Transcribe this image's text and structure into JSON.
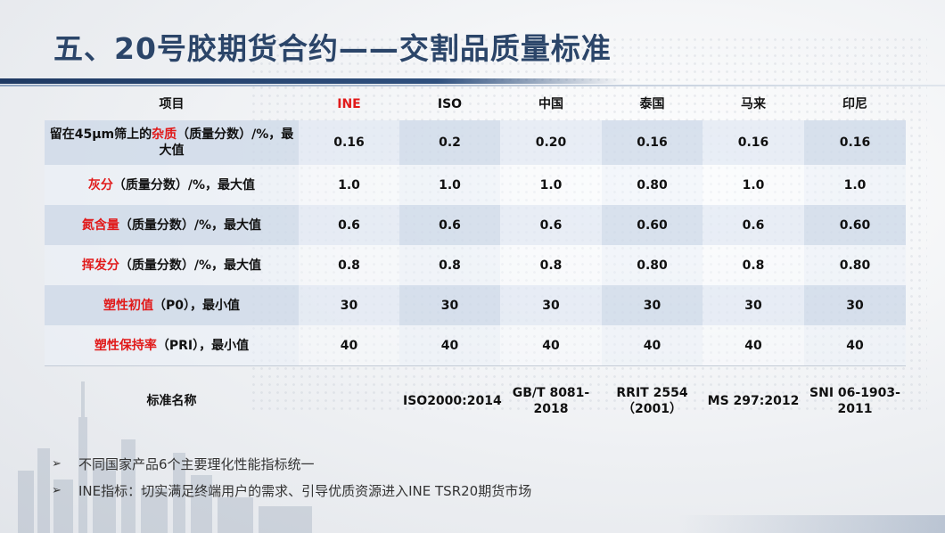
{
  "title": "五、20号胶期货合约——交割品质量标准",
  "table": {
    "headers": [
      "项目",
      "INE",
      "ISO",
      "中国",
      "泰国",
      "马来",
      "印尼"
    ],
    "rows": [
      {
        "label_key": "杂质",
        "label_pre": "留在45μm筛上的",
        "label_post": "（质量分数）/%，最大值",
        "values": [
          "0.16",
          "0.2",
          "0.20",
          "0.16",
          "0.16",
          "0.16"
        ]
      },
      {
        "label_key": "灰分",
        "label_pre": "",
        "label_post": "（质量分数）/%，最大值",
        "values": [
          "1.0",
          "1.0",
          "1.0",
          "0.80",
          "1.0",
          "1.0"
        ]
      },
      {
        "label_key": "氮含量",
        "label_pre": "",
        "label_post": "（质量分数）/%，最大值",
        "values": [
          "0.6",
          "0.6",
          "0.6",
          "0.60",
          "0.6",
          "0.60"
        ]
      },
      {
        "label_key": "挥发分",
        "label_pre": "",
        "label_post": "（质量分数）/%，最大值",
        "values": [
          "0.8",
          "0.8",
          "0.8",
          "0.80",
          "0.8",
          "0.80"
        ]
      },
      {
        "label_key": "塑性初值",
        "label_pre": "",
        "label_post": "（P0），最小值",
        "values": [
          "30",
          "30",
          "30",
          "30",
          "30",
          "30"
        ]
      },
      {
        "label_key": "塑性保持率",
        "label_pre": "",
        "label_post": "（PRI），最小值",
        "values": [
          "40",
          "40",
          "40",
          "40",
          "40",
          "40"
        ]
      }
    ],
    "standard": {
      "label": "标准名称",
      "values": [
        "",
        "ISO2000:2014",
        "GB/T 8081-2018",
        "RRIT 2554（2001）",
        "MS 297:2012",
        "SNI 06-1903-2011"
      ]
    }
  },
  "bullets": [
    "不同国家产品6个主要理化性能指标统一",
    "INE指标：切实满足终端用户的需求、引导优质资源进入INE TSR20期货市场"
  ],
  "colors": {
    "title": "#2b4569",
    "highlight": "#e11a1a",
    "band": "#1f3a63"
  }
}
